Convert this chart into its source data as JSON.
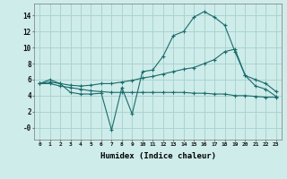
{
  "xlabel": "Humidex (Indice chaleur)",
  "background_color": "#ceecea",
  "grid_color": "#aad4d0",
  "line_color": "#1a6b6b",
  "x_ticks": [
    0,
    1,
    2,
    3,
    4,
    5,
    6,
    7,
    8,
    9,
    10,
    11,
    12,
    13,
    14,
    15,
    16,
    17,
    18,
    19,
    20,
    21,
    22,
    23
  ],
  "ylim": [
    -1.5,
    15.5
  ],
  "xlim": [
    -0.5,
    23.5
  ],
  "line1_x": [
    0,
    1,
    2,
    3,
    4,
    5,
    6,
    7,
    8,
    9,
    10,
    11,
    12,
    13,
    14,
    15,
    16,
    17,
    18,
    19,
    20,
    21,
    22,
    23
  ],
  "line1_y": [
    5.5,
    6.0,
    5.5,
    4.4,
    4.2,
    4.2,
    4.3,
    -0.3,
    5.0,
    1.7,
    7.0,
    7.2,
    8.9,
    11.5,
    12.0,
    13.8,
    14.5,
    13.8,
    12.8,
    9.5,
    6.5,
    5.2,
    4.8,
    3.9
  ],
  "line2_x": [
    0,
    1,
    2,
    3,
    4,
    5,
    6,
    7,
    8,
    9,
    10,
    11,
    12,
    13,
    14,
    15,
    16,
    17,
    18,
    19,
    20,
    21,
    22,
    23
  ],
  "line2_y": [
    5.5,
    5.7,
    5.5,
    5.3,
    5.2,
    5.3,
    5.5,
    5.5,
    5.7,
    5.9,
    6.2,
    6.4,
    6.7,
    7.0,
    7.3,
    7.5,
    8.0,
    8.5,
    9.5,
    9.8,
    6.5,
    6.0,
    5.5,
    4.5
  ],
  "line3_x": [
    0,
    1,
    2,
    3,
    4,
    5,
    6,
    7,
    8,
    9,
    10,
    11,
    12,
    13,
    14,
    15,
    16,
    17,
    18,
    19,
    20,
    21,
    22,
    23
  ],
  "line3_y": [
    5.5,
    5.5,
    5.2,
    5.0,
    4.8,
    4.6,
    4.5,
    4.4,
    4.4,
    4.4,
    4.4,
    4.4,
    4.4,
    4.4,
    4.4,
    4.3,
    4.3,
    4.2,
    4.2,
    4.0,
    4.0,
    3.9,
    3.8,
    3.8
  ]
}
